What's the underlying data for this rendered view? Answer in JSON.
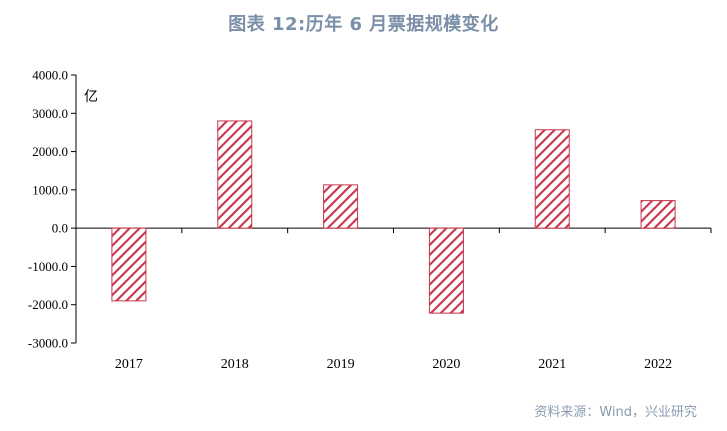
{
  "title": "图表 12:历年 6 月票据规模变化",
  "source": "资料来源：Wind，兴业研究",
  "chart_data": {
    "type": "bar",
    "categories": [
      "2017",
      "2018",
      "2019",
      "2020",
      "2021",
      "2022"
    ],
    "values": [
      -1900,
      2800,
      1130,
      -2220,
      2570,
      720
    ],
    "unit": "亿",
    "ylim": [
      -3000,
      4000
    ],
    "yticks": [
      4000,
      3000,
      2000,
      1000,
      0,
      -1000,
      -2000,
      -3000
    ],
    "ytick_labels": [
      "4000.0",
      "3000.0",
      "2000.0",
      "1000.0",
      "0.0",
      "-1000.0",
      "-2000.0",
      "-3000.0"
    ],
    "bar_style": "diagonal-hatch",
    "bar_color": "#c8344a",
    "grid": false,
    "legend": "none"
  }
}
